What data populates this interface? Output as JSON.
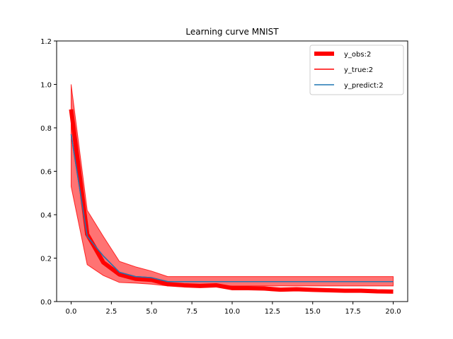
{
  "chart_data": {
    "type": "line",
    "title": "Learning curve MNIST",
    "xlabel": "",
    "ylabel": "",
    "xlim": [
      -0.9,
      20.9
    ],
    "ylim": [
      0.0,
      1.2
    ],
    "xticks": [
      0.0,
      2.5,
      5.0,
      7.5,
      10.0,
      12.5,
      15.0,
      17.5,
      20.0
    ],
    "xtick_labels": [
      "0.0",
      "2.5",
      "5.0",
      "7.5",
      "10.0",
      "12.5",
      "15.0",
      "17.5",
      "20.0"
    ],
    "yticks": [
      0.0,
      0.2,
      0.4,
      0.6,
      0.8,
      1.0,
      1.2
    ],
    "ytick_labels": [
      "0.0",
      "0.2",
      "0.4",
      "0.6",
      "0.8",
      "1.0",
      "1.2"
    ],
    "grid": false,
    "legend_position": "top-right",
    "x": [
      0,
      1,
      2,
      3,
      4,
      5,
      6,
      7,
      8,
      9,
      10,
      11,
      12,
      13,
      14,
      15,
      16,
      17,
      18,
      19,
      20
    ],
    "series": [
      {
        "name": "y_obs:2",
        "color": "#ff0000",
        "style": "thick",
        "values": [
          0.885,
          0.31,
          0.18,
          0.125,
          0.105,
          0.1,
          0.08,
          0.075,
          0.072,
          0.075,
          0.062,
          0.062,
          0.06,
          0.055,
          0.057,
          0.054,
          0.052,
          0.05,
          0.05,
          0.047,
          0.046
        ]
      },
      {
        "name": "y_true:2",
        "color": "#ff0000",
        "style": "thin",
        "values": [
          0.77,
          0.3,
          0.21,
          0.135,
          0.115,
          0.11,
          0.092,
          0.092,
          0.092,
          0.092,
          0.092,
          0.092,
          0.092,
          0.092,
          0.092,
          0.092,
          0.092,
          0.092,
          0.092,
          0.092,
          0.092
        ]
      },
      {
        "name": "y_predict:2",
        "color": "#1f77b4",
        "style": "thin",
        "values": [
          0.77,
          0.3,
          0.21,
          0.135,
          0.115,
          0.11,
          0.092,
          0.092,
          0.092,
          0.092,
          0.092,
          0.092,
          0.092,
          0.092,
          0.092,
          0.092,
          0.092,
          0.092,
          0.092,
          0.092,
          0.092
        ]
      }
    ],
    "band": {
      "color": "#ff0000",
      "upper": [
        1.0,
        0.42,
        0.3,
        0.185,
        0.16,
        0.14,
        0.115,
        0.115,
        0.115,
        0.115,
        0.115,
        0.115,
        0.115,
        0.115,
        0.115,
        0.115,
        0.115,
        0.115,
        0.115,
        0.115,
        0.115
      ],
      "lower": [
        0.53,
        0.17,
        0.12,
        0.088,
        0.085,
        0.08,
        0.072,
        0.072,
        0.072,
        0.072,
        0.072,
        0.072,
        0.072,
        0.072,
        0.072,
        0.072,
        0.072,
        0.072,
        0.072,
        0.072,
        0.072
      ]
    }
  }
}
